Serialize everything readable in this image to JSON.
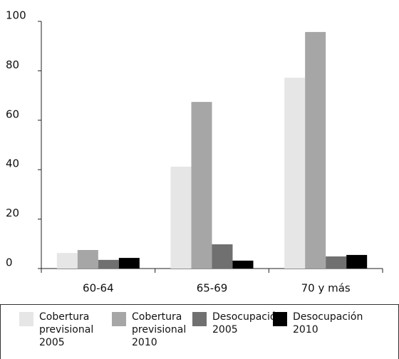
{
  "chart_data": {
    "type": "bar",
    "categories": [
      "60-64",
      "65-69",
      "70 y más"
    ],
    "series": [
      {
        "name": "Cobertura previsional 2005",
        "color": "#e6e6e6",
        "values": [
          6.3,
          41.2,
          77.2
        ]
      },
      {
        "name": "Cobertura previsional 2010",
        "color": "#a6a6a6",
        "values": [
          7.5,
          67.4,
          95.7
        ]
      },
      {
        "name": "Desocupación 2005",
        "color": "#707070",
        "values": [
          3.5,
          9.8,
          4.9
        ]
      },
      {
        "name": "Desocupación 2010",
        "color": "#000000",
        "values": [
          4.3,
          3.2,
          5.5
        ]
      }
    ],
    "ylim": [
      0,
      100
    ],
    "yticks": [
      0,
      20,
      40,
      60,
      80,
      100
    ],
    "grid": false
  }
}
